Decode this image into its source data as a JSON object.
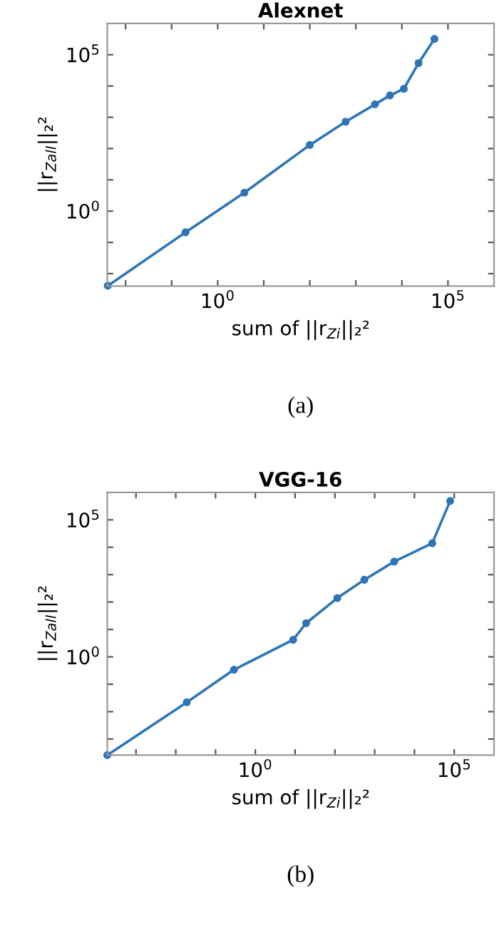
{
  "chart_data": [
    {
      "type": "line",
      "title": "Alexnet",
      "xlabel": "sum of ||r$_{Zi}$||₂²",
      "ylabel": "||r$_{Zall}$||₂²",
      "annotations": [
        "(a)"
      ],
      "log": "xy",
      "grid": false,
      "marker": "circle",
      "line_style": "solid",
      "xlim": [
        0.004,
        1000000
      ],
      "ylim": [
        0.004,
        1000000
      ],
      "xticks": [
        {
          "value": 0.01,
          "label": null
        },
        {
          "value": 0.1,
          "label": null
        },
        {
          "value": 1,
          "label": "10$^{0}$"
        },
        {
          "value": 10,
          "label": null
        },
        {
          "value": 100,
          "label": null
        },
        {
          "value": 1000,
          "label": null
        },
        {
          "value": 10000,
          "label": null
        },
        {
          "value": 100000,
          "label": "10$^{5}$"
        }
      ],
      "yticks": [
        {
          "value": 0.01,
          "label": null
        },
        {
          "value": 0.1,
          "label": null
        },
        {
          "value": 1,
          "label": "10$^{0}$"
        },
        {
          "value": 10,
          "label": null
        },
        {
          "value": 100,
          "label": null
        },
        {
          "value": 1000,
          "label": null
        },
        {
          "value": 10000,
          "label": null
        },
        {
          "value": 100000,
          "label": "10$^{5}$"
        }
      ],
      "series": [
        {
          "color": "#2e75b6",
          "x": [
            0.0041,
            0.2,
            3.8,
            100,
            600,
            2600,
            5500,
            11000,
            23000,
            51000
          ],
          "values": [
            0.0041,
            0.21,
            3.9,
            130,
            720,
            2600,
            5000,
            8100,
            54000,
            320000
          ]
        }
      ]
    },
    {
      "type": "line",
      "title": "VGG-16",
      "xlabel": "sum of ||r$_{Zi}$||₂²",
      "ylabel": "||r$_{Zall}$||₂²",
      "annotations": [
        "(b)"
      ],
      "log": "xy",
      "grid": false,
      "marker": "circle",
      "line_style": "solid",
      "xlim": [
        0.00019,
        1000000
      ],
      "ylim": [
        0.00026,
        1000000
      ],
      "xticks": [
        {
          "value": 0.001,
          "label": null
        },
        {
          "value": 0.01,
          "label": null
        },
        {
          "value": 0.1,
          "label": null
        },
        {
          "value": 1,
          "label": "10$^{0}$"
        },
        {
          "value": 10,
          "label": null
        },
        {
          "value": 100,
          "label": null
        },
        {
          "value": 1000,
          "label": null
        },
        {
          "value": 10000,
          "label": null
        },
        {
          "value": 100000,
          "label": "10$^{5}$"
        }
      ],
      "yticks": [
        {
          "value": 0.001,
          "label": null
        },
        {
          "value": 0.01,
          "label": null
        },
        {
          "value": 0.1,
          "label": null
        },
        {
          "value": 1,
          "label": "10$^{0}$"
        },
        {
          "value": 10,
          "label": null
        },
        {
          "value": 100,
          "label": null
        },
        {
          "value": 1000,
          "label": null
        },
        {
          "value": 10000,
          "label": null
        },
        {
          "value": 100000,
          "label": "10$^{5}$"
        }
      ],
      "series": [
        {
          "color": "#2e75b6",
          "x": [
            0.00019,
            0.019,
            0.29,
            8.9,
            19,
            115,
            550,
            3100,
            28000,
            79000
          ],
          "values": [
            0.00026,
            0.022,
            0.34,
            4.2,
            17,
            140,
            650,
            3000,
            14000,
            490000
          ]
        }
      ]
    }
  ]
}
